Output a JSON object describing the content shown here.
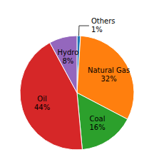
{
  "chart_data": {
    "type": "pie",
    "categories": [
      "Others",
      "Natural Gas",
      "Coal",
      "Oil",
      "Hydro"
    ],
    "values": [
      1,
      32,
      16,
      44,
      8
    ],
    "value_labels": [
      "1%",
      "32%",
      "16%",
      "44%",
      "8%"
    ],
    "data_labels": true
  }
}
